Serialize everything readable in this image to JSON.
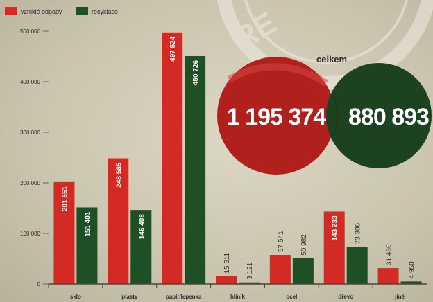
{
  "colors": {
    "red": "#d42a26",
    "green": "#1f4f24"
  },
  "legend": [
    {
      "label": "vzniklé odpady",
      "color": "#d42a26"
    },
    {
      "label": "recyklace",
      "color": "#1f4f24"
    }
  ],
  "stamp_text": "RE",
  "chart_data": {
    "type": "bar",
    "categories": [
      "sklo",
      "plasty",
      "papír/lepenka",
      "hliník",
      "ocel",
      "dřevo",
      "jiné"
    ],
    "series": [
      {
        "name": "vzniklé odpady",
        "color": "#d42a26",
        "values": [
          201551,
          248585,
          497524,
          15511,
          57541,
          143233,
          31430
        ],
        "labels": [
          "201 551",
          "248 585",
          "497 524",
          "15 511",
          "57 541",
          "143 233",
          "31 430"
        ]
      },
      {
        "name": "recyklace",
        "color": "#1f4f24",
        "values": [
          151401,
          146408,
          450726,
          3121,
          50982,
          73306,
          4950
        ],
        "labels": [
          "151 401",
          "146 408",
          "450 726",
          "3 121",
          "50 982",
          "73 306",
          "4 950"
        ]
      }
    ],
    "yticks": [
      0,
      100000,
      200000,
      300000,
      400000,
      500000
    ],
    "ytick_labels": [
      "0",
      "100 000",
      "200 000",
      "300 000",
      "400 000",
      "500 000"
    ],
    "ylim": [
      0,
      500000
    ],
    "totals": {
      "label": "celkem",
      "vznikle": "1 195 374",
      "recyklace": "880 893"
    },
    "legend_position": "top-left",
    "grid": false
  }
}
